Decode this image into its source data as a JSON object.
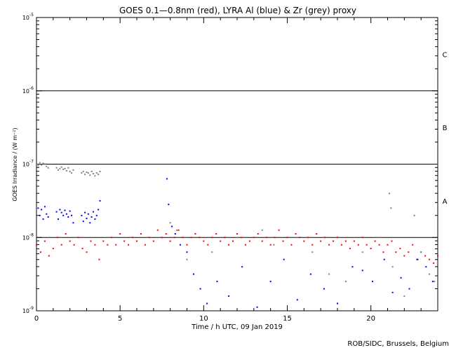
{
  "chart_data": {
    "type": "scatter",
    "title": "GOES 0.1—0.8nm (red), LYRA Al (blue) & Zr (grey) proxy",
    "xlabel": "Time / h UTC, 09 Jan 2019",
    "ylabel": "GOES Irradiance / (W m⁻²)",
    "xlim": [
      0,
      24
    ],
    "ylim_log10": [
      -9,
      -5
    ],
    "yscale": "log",
    "x_ticks": [
      "0",
      "5",
      "10",
      "15",
      "20"
    ],
    "x_tick_values": [
      0,
      5,
      10,
      15,
      20
    ],
    "y_ticks": [
      {
        "base": "10",
        "exp": "-5",
        "log": -5
      },
      {
        "base": "10",
        "exp": "-6",
        "log": -6
      },
      {
        "base": "10",
        "exp": "-7",
        "log": -7
      },
      {
        "base": "10",
        "exp": "-8",
        "log": -8
      },
      {
        "base": "10",
        "exp": "-9",
        "log": -9
      }
    ],
    "flare_class_lines": [
      -6,
      -7,
      -8
    ],
    "flare_class_labels": [
      {
        "label": "C",
        "log": -5.5
      },
      {
        "label": "B",
        "log": -6.5
      },
      {
        "label": "A",
        "log": -7.5
      }
    ],
    "series": [
      {
        "name": "GOES 0.1-0.8nm",
        "color": "#ff0000",
        "step_hours": 0.25,
        "log10_values": [
          -8.1,
          -8.2,
          -8.05,
          -8.25,
          -8.15,
          -8.0,
          -8.1,
          -7.95,
          -8.05,
          -8.1,
          -8.0,
          -8.15,
          -8.2,
          -8.05,
          -8.1,
          -8.3,
          -8.05,
          -8.1,
          -8.0,
          -8.1,
          -7.95,
          -8.05,
          -8.1,
          -8.0,
          -8.05,
          -7.95,
          -8.1,
          -8.0,
          -8.05,
          -7.9,
          -8.0,
          -7.95,
          -8.05,
          -8.0,
          -7.9,
          -8.0,
          -8.1,
          -8.0,
          -7.95,
          -8.0,
          -8.05,
          -8.1,
          -8.0,
          -7.95,
          -8.05,
          -8.0,
          -8.1,
          -8.05,
          -7.95,
          -8.0,
          -8.1,
          -8.05,
          -8.0,
          -7.95,
          -8.05,
          -8.0,
          -8.1,
          -8.0,
          -7.9,
          -8.05,
          -8.0,
          -8.1,
          -7.95,
          -8.0,
          -8.05,
          -8.0,
          -8.1,
          -7.95,
          -8.05,
          -8.0,
          -8.1,
          -8.05,
          -8.0,
          -8.1,
          -8.05,
          -8.15,
          -8.05,
          -8.1,
          -8.0,
          -8.1,
          -8.15,
          -8.05,
          -8.1,
          -8.2,
          -8.1,
          -8.05,
          -8.2,
          -8.15,
          -8.25,
          -8.2,
          -8.1,
          -8.3,
          -8.2,
          -8.25,
          -8.3,
          -8.35,
          -8.25
        ]
      },
      {
        "name": "LYRA Al proxy",
        "color": "#0000ff",
        "points": [
          [
            0.1,
            -7.6
          ],
          [
            0.2,
            -7.7
          ],
          [
            0.3,
            -7.62
          ],
          [
            0.4,
            -7.75
          ],
          [
            0.5,
            -7.58
          ],
          [
            0.6,
            -7.68
          ],
          [
            0.7,
            -7.72
          ],
          [
            1.2,
            -7.65
          ],
          [
            1.3,
            -7.75
          ],
          [
            1.4,
            -7.62
          ],
          [
            1.5,
            -7.66
          ],
          [
            1.6,
            -7.7
          ],
          [
            1.7,
            -7.63
          ],
          [
            1.8,
            -7.68
          ],
          [
            1.9,
            -7.72
          ],
          [
            2.0,
            -7.64
          ],
          [
            2.1,
            -7.7
          ],
          [
            2.2,
            -7.8
          ],
          [
            2.7,
            -7.7
          ],
          [
            2.8,
            -7.78
          ],
          [
            2.9,
            -7.66
          ],
          [
            3.0,
            -7.74
          ],
          [
            3.1,
            -7.68
          ],
          [
            3.2,
            -7.8
          ],
          [
            3.3,
            -7.72
          ],
          [
            3.4,
            -7.65
          ],
          [
            3.5,
            -7.75
          ],
          [
            3.6,
            -7.7
          ],
          [
            3.7,
            -7.62
          ],
          [
            3.8,
            -7.5
          ],
          [
            7.8,
            -7.2
          ],
          [
            7.9,
            -7.55
          ],
          [
            8.1,
            -7.85
          ],
          [
            8.3,
            -7.95
          ],
          [
            8.6,
            -8.1
          ],
          [
            9.0,
            -8.2
          ],
          [
            9.4,
            -8.5
          ],
          [
            9.8,
            -8.7
          ],
          [
            10.2,
            -8.9
          ],
          [
            10.8,
            -8.6
          ],
          [
            11.5,
            -8.8
          ],
          [
            12.3,
            -8.4
          ],
          [
            13.2,
            -8.95
          ],
          [
            14.0,
            -8.6
          ],
          [
            14.8,
            -8.3
          ],
          [
            15.6,
            -8.85
          ],
          [
            16.4,
            -8.5
          ],
          [
            17.2,
            -8.7
          ],
          [
            18.0,
            -8.9
          ],
          [
            18.9,
            -8.4
          ],
          [
            19.5,
            -8.45
          ],
          [
            20.1,
            -8.6
          ],
          [
            20.8,
            -8.3
          ],
          [
            21.3,
            -8.75
          ],
          [
            21.8,
            -8.55
          ],
          [
            22.3,
            -8.7
          ],
          [
            22.8,
            -8.3
          ],
          [
            23.3,
            -8.4
          ],
          [
            23.7,
            -8.6
          ]
        ]
      },
      {
        "name": "LYRA Zr proxy",
        "color": "#808080",
        "points": [
          [
            0.0,
            -7.0
          ],
          [
            0.1,
            -7.02
          ],
          [
            0.2,
            -6.98
          ],
          [
            0.3,
            -7.01
          ],
          [
            0.4,
            -6.99
          ],
          [
            0.5,
            -7.0
          ],
          [
            0.6,
            -7.03
          ],
          [
            0.7,
            -7.05
          ],
          [
            1.2,
            -7.05
          ],
          [
            1.3,
            -7.08
          ],
          [
            1.4,
            -7.06
          ],
          [
            1.5,
            -7.04
          ],
          [
            1.6,
            -7.07
          ],
          [
            1.7,
            -7.06
          ],
          [
            1.8,
            -7.09
          ],
          [
            1.9,
            -7.05
          ],
          [
            2.0,
            -7.1
          ],
          [
            2.1,
            -7.12
          ],
          [
            2.2,
            -7.08
          ],
          [
            2.7,
            -7.12
          ],
          [
            2.8,
            -7.1
          ],
          [
            2.9,
            -7.14
          ],
          [
            3.0,
            -7.11
          ],
          [
            3.1,
            -7.12
          ],
          [
            3.2,
            -7.15
          ],
          [
            3.3,
            -7.1
          ],
          [
            3.4,
            -7.13
          ],
          [
            3.5,
            -7.16
          ],
          [
            3.6,
            -7.12
          ],
          [
            3.7,
            -7.14
          ],
          [
            3.8,
            -7.1
          ],
          [
            8.0,
            -7.8
          ],
          [
            8.4,
            -7.9
          ],
          [
            9.0,
            -8.3
          ],
          [
            10.5,
            -8.2
          ],
          [
            12.0,
            -8.0
          ],
          [
            13.5,
            -7.9
          ],
          [
            14.2,
            -8.1
          ],
          [
            15.5,
            -8.0
          ],
          [
            16.5,
            -8.2
          ],
          [
            17.5,
            -8.5
          ],
          [
            18.5,
            -8.6
          ],
          [
            19.5,
            -8.2
          ],
          [
            20.5,
            -8.0
          ],
          [
            21.1,
            -7.4
          ],
          [
            21.2,
            -7.6
          ],
          [
            21.3,
            -8.4
          ],
          [
            22.0,
            -8.8
          ],
          [
            22.6,
            -7.7
          ],
          [
            23.0,
            -8.2
          ],
          [
            23.5,
            -8.5
          ],
          [
            23.8,
            -8.6
          ]
        ]
      }
    ],
    "footer": "ROB/SIDC, Brussels, Belgium"
  }
}
